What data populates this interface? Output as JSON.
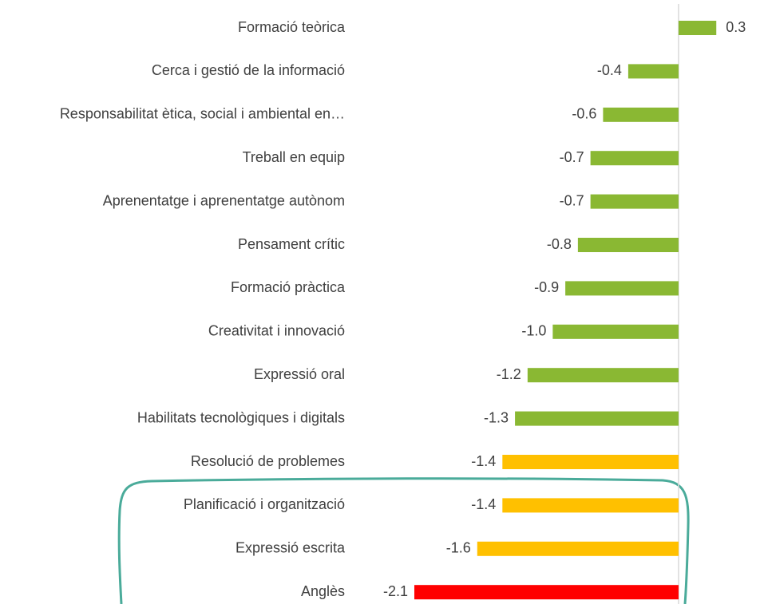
{
  "chart_data": {
    "type": "hbar",
    "categories": [
      "Formació teòrica",
      "Cerca i gestió de la informació",
      "Responsabilitat ètica, social i ambiental en…",
      "Treball en equip",
      "Aprenentatge i aprenentatge autònom",
      "Pensament crític",
      "Formació pràctica",
      "Creativitat i innovació ",
      "Expressió oral",
      "Habilitats tecnològiques i digitals",
      "Resolució de problemes",
      "Planificació i organització",
      "Expressió escrita",
      "Anglès"
    ],
    "values": [
      0.3,
      -0.4,
      -0.6,
      -0.7,
      -0.7,
      -0.8,
      -0.9,
      -1.0,
      -1.2,
      -1.3,
      -1.4,
      -1.4,
      -1.6,
      -2.1
    ],
    "value_labels": [
      "0.3",
      "-0.4",
      "-0.6",
      "-0.7",
      "-0.7",
      "-0.8",
      "-0.9",
      "-1.0",
      "-1.2",
      "-1.3",
      "-1.4",
      "-1.4",
      "-1.6",
      "-2.1"
    ],
    "colors": [
      "#8ab833",
      "#8ab833",
      "#8ab833",
      "#8ab833",
      "#8ab833",
      "#8ab833",
      "#8ab833",
      "#8ab833",
      "#8ab833",
      "#8ab833",
      "#ffc000",
      "#ffc000",
      "#ffc000",
      "#ff0000"
    ],
    "xlim": [
      -2.1,
      0.4
    ]
  }
}
